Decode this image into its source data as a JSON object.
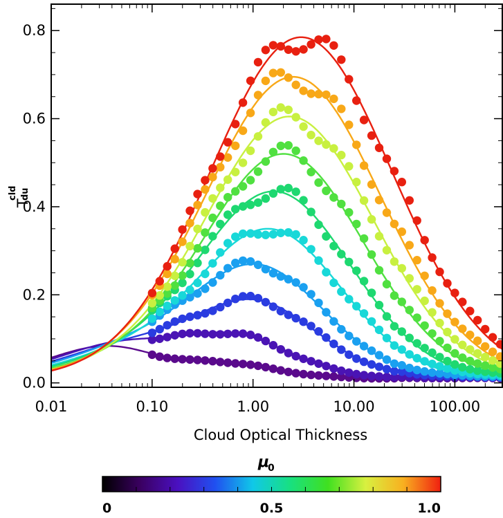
{
  "chart_data": {
    "type": "line",
    "xlabel": "Cloud Optical Thickness",
    "ylabel": "T",
    "ylabel_sup": "cld",
    "ylabel_sub": "du",
    "x_scale": "log",
    "xlim": [
      0.01,
      300
    ],
    "ylim": [
      -0.01,
      0.86
    ],
    "x_ticks": [
      {
        "v": 0.01,
        "label": "0.01"
      },
      {
        "v": 0.1,
        "label": "0.10"
      },
      {
        "v": 1,
        "label": "1.00"
      },
      {
        "v": 10,
        "label": "10.00"
      },
      {
        "v": 100,
        "label": "100.00"
      }
    ],
    "y_ticks": [
      {
        "v": 0.0,
        "label": "0.0"
      },
      {
        "v": 0.2,
        "label": "0.2"
      },
      {
        "v": 0.4,
        "label": "0.4"
      },
      {
        "v": 0.6,
        "label": "0.6"
      },
      {
        "v": 0.8,
        "label": "0.8"
      }
    ],
    "grid": false,
    "series": [
      {
        "mu0": 0.1,
        "color": "#5a0a8c",
        "peak_x": 0.35,
        "peak_y": 0.05
      },
      {
        "mu0": 0.2,
        "color": "#4a14b4",
        "peak_x": 0.5,
        "peak_y": 0.115
      },
      {
        "mu0": 0.3,
        "color": "#2a3ce0",
        "peak_x": 0.9,
        "peak_y": 0.19
      },
      {
        "mu0": 0.4,
        "color": "#1aa0f0",
        "peak_x": 1.0,
        "peak_y": 0.27
      },
      {
        "mu0": 0.5,
        "color": "#18d8d8",
        "peak_x": 1.4,
        "peak_y": 0.35
      },
      {
        "mu0": 0.6,
        "color": "#1ed870",
        "peak_x": 1.6,
        "peak_y": 0.435
      },
      {
        "mu0": 0.7,
        "color": "#50e040",
        "peak_x": 2.0,
        "peak_y": 0.52
      },
      {
        "mu0": 0.8,
        "color": "#c8f040",
        "peak_x": 2.3,
        "peak_y": 0.605
      },
      {
        "mu0": 0.9,
        "color": "#f8a818",
        "peak_x": 2.5,
        "peak_y": 0.695
      },
      {
        "mu0": 1.0,
        "color": "#e82010",
        "peak_x": 3.0,
        "peak_y": 0.785
      }
    ],
    "colorbar": {
      "title": "μ",
      "title_sub": "0",
      "range": [
        0,
        1.0
      ],
      "ticks": [
        {
          "v": 0,
          "label": "0"
        },
        {
          "v": 0.5,
          "label": "0.5"
        },
        {
          "v": 1.0,
          "label": "1.0"
        }
      ],
      "stops": [
        "#000000",
        "#3a0060",
        "#4a10c0",
        "#2050f0",
        "#10c8e8",
        "#18e080",
        "#40e020",
        "#d8f040",
        "#f8b020",
        "#f02010"
      ]
    }
  }
}
